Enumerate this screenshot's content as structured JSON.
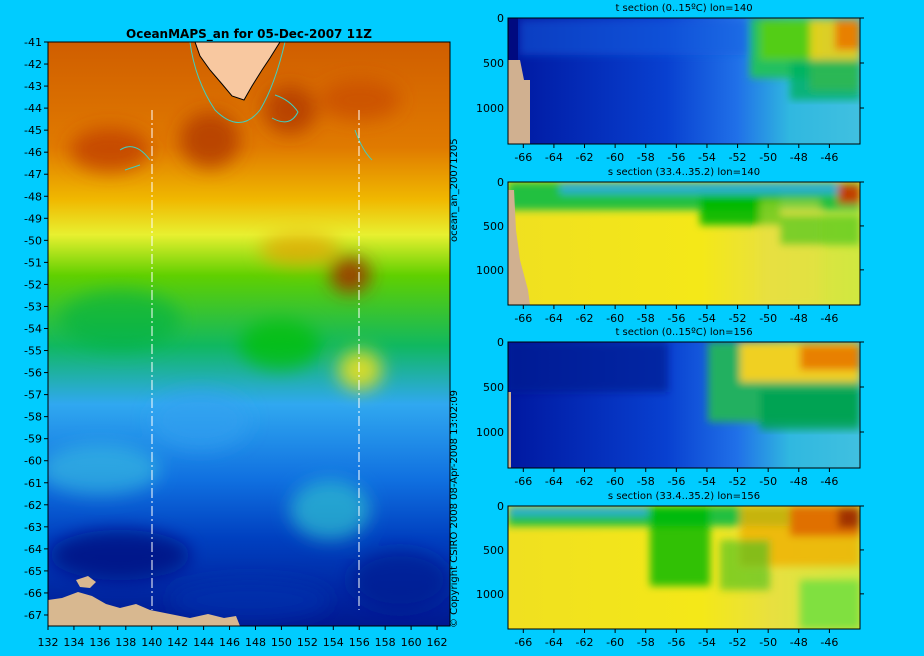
{
  "map_panel": {
    "title": "OceanMAPS_an for 05-Dec-2007 11Z",
    "x_ticks": [
      "132",
      "134",
      "136",
      "138",
      "140",
      "142",
      "144",
      "146",
      "148",
      "150",
      "152",
      "154",
      "156",
      "158",
      "160",
      "162"
    ],
    "y_ticks": [
      "-41",
      "-42",
      "-43",
      "-44",
      "-45",
      "-46",
      "-47",
      "-48",
      "-49",
      "-50",
      "-51",
      "-52",
      "-53",
      "-54",
      "-55",
      "-56",
      "-57",
      "-58",
      "-59",
      "-60",
      "-61",
      "-62",
      "-63",
      "-64",
      "-65",
      "-66",
      "-67"
    ],
    "side_label": "ocean_an_20071205",
    "copyright": "© Copyright CSIRO 2008   08-Apr-2008 13:02:09",
    "section_lons": [
      140,
      156
    ]
  },
  "sections": [
    {
      "title": "t section (0..15ºC) lon=140",
      "x_ticks": [
        "-66",
        "-64",
        "-62",
        "-60",
        "-58",
        "-56",
        "-54",
        "-52",
        "-50",
        "-48",
        "-46"
      ],
      "y_ticks": [
        "0",
        "500",
        "1000"
      ]
    },
    {
      "title": "s section (33.4..35.2) lon=140",
      "x_ticks": [
        "-66",
        "-64",
        "-62",
        "-60",
        "-58",
        "-56",
        "-54",
        "-52",
        "-50",
        "-48",
        "-46"
      ],
      "y_ticks": [
        "0",
        "500",
        "1000"
      ]
    },
    {
      "title": "t section (0..15ºC) lon=156",
      "x_ticks": [
        "-66",
        "-64",
        "-62",
        "-60",
        "-58",
        "-56",
        "-54",
        "-52",
        "-50",
        "-48",
        "-46"
      ],
      "y_ticks": [
        "0",
        "500",
        "1000"
      ]
    },
    {
      "title": "s section (33.4..35.2) lon=156",
      "x_ticks": [
        "-66",
        "-64",
        "-62",
        "-60",
        "-58",
        "-56",
        "-54",
        "-52",
        "-50",
        "-48",
        "-46"
      ],
      "y_ticks": [
        "0",
        "500",
        "1000"
      ]
    }
  ],
  "chart_data": [
    {
      "type": "heatmap",
      "title": "OceanMAPS_an for 05-Dec-2007 11Z",
      "xlim": [
        132,
        163
      ],
      "ylim": [
        -67.5,
        -41
      ],
      "x_ticks": [
        132,
        134,
        136,
        138,
        140,
        142,
        144,
        146,
        148,
        150,
        152,
        154,
        156,
        158,
        160,
        162
      ],
      "y_ticks": [
        -41,
        -42,
        -43,
        -44,
        -45,
        -46,
        -47,
        -48,
        -49,
        -50,
        -51,
        -52,
        -53,
        -54,
        -55,
        -56,
        -57,
        -58,
        -59,
        -60,
        -61,
        -62,
        -63,
        -64,
        -65,
        -66,
        -67
      ],
      "section_lines_lon": [
        140,
        156
      ]
    },
    {
      "type": "heatmap",
      "title": "t section (0..15ºC) lon=140",
      "xlim": [
        -67,
        -44
      ],
      "ylim": [
        1400,
        0
      ],
      "x_ticks": [
        -66,
        -64,
        -62,
        -60,
        -58,
        -56,
        -54,
        -52,
        -50,
        -48,
        -46
      ],
      "y_ticks": [
        0,
        500,
        1000
      ],
      "range": [
        0,
        15
      ]
    },
    {
      "type": "heatmap",
      "title": "s section (33.4..35.2) lon=140",
      "xlim": [
        -67,
        -44
      ],
      "ylim": [
        1400,
        0
      ],
      "x_ticks": [
        -66,
        -64,
        -62,
        -60,
        -58,
        -56,
        -54,
        -52,
        -50,
        -48,
        -46
      ],
      "y_ticks": [
        0,
        500,
        1000
      ],
      "range": [
        33.4,
        35.2
      ]
    },
    {
      "type": "heatmap",
      "title": "t section (0..15ºC) lon=156",
      "xlim": [
        -67,
        -44
      ],
      "ylim": [
        1400,
        0
      ],
      "x_ticks": [
        -66,
        -64,
        -62,
        -60,
        -58,
        -56,
        -54,
        -52,
        -50,
        -48,
        -46
      ],
      "y_ticks": [
        0,
        500,
        1000
      ],
      "range": [
        0,
        15
      ]
    },
    {
      "type": "heatmap",
      "title": "s section (33.4..35.2) lon=156",
      "xlim": [
        -67,
        -44
      ],
      "ylim": [
        1400,
        0
      ],
      "x_ticks": [
        -66,
        -64,
        -62,
        -60,
        -58,
        -56,
        -54,
        -52,
        -50,
        -48,
        -46
      ],
      "y_ticks": [
        0,
        500,
        1000
      ],
      "range": [
        33.4,
        35.2
      ]
    }
  ],
  "colors": {
    "background": "#00CCFF",
    "land": "#D8B890",
    "coast": "#40D0C0",
    "ramp": [
      "#000A80",
      "#0028B0",
      "#1060E0",
      "#30A0F0",
      "#40D0E0",
      "#20C060",
      "#00C000",
      "#90E040",
      "#F0F020",
      "#F0C000",
      "#E88000",
      "#C04000",
      "#802000"
    ]
  }
}
